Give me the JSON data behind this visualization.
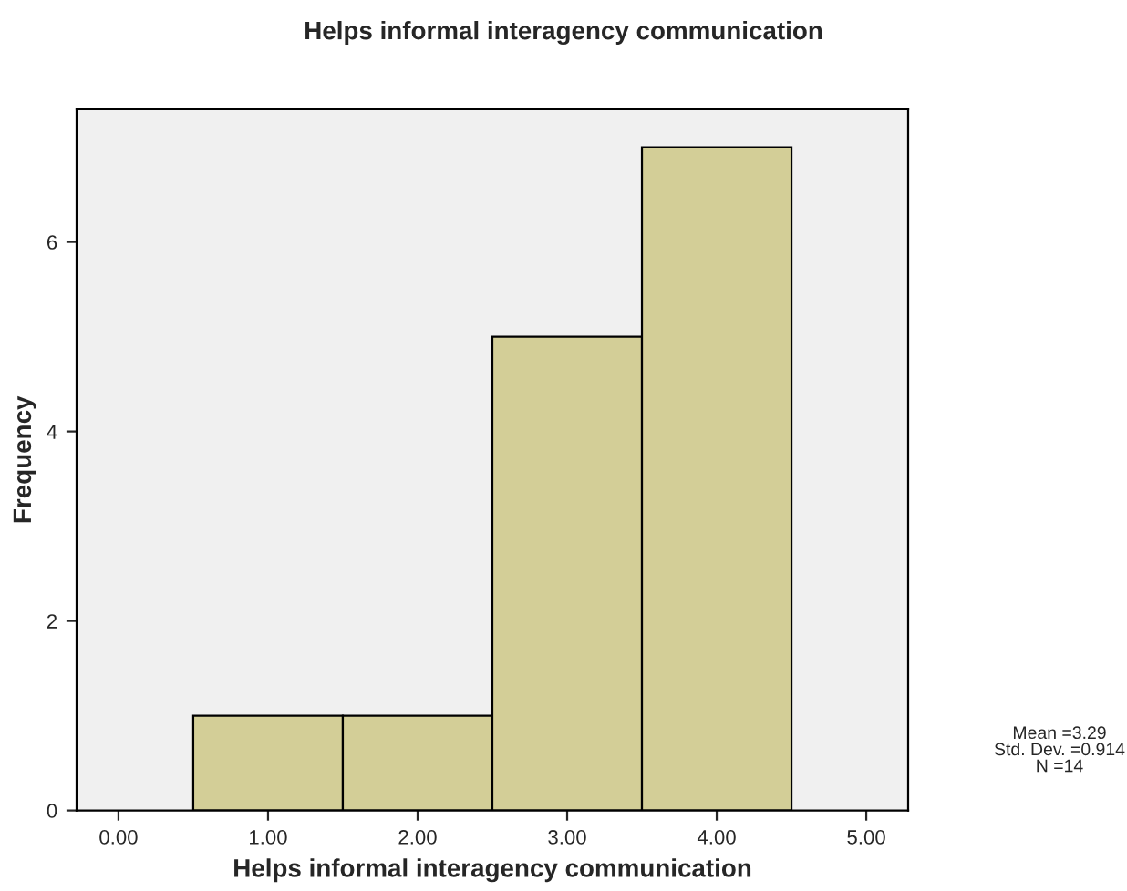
{
  "chart_data": {
    "type": "histogram",
    "title": "Helps informal interagency communication",
    "xlabel": "Helps informal interagency communication",
    "ylabel": "Frequency",
    "bins": [
      0.5,
      1.5,
      2.5,
      3.5,
      4.5
    ],
    "values": [
      1,
      1,
      5,
      7
    ],
    "color": "#d3ce97",
    "xlim": [
      -0.28,
      5.28
    ],
    "xticks": [
      {
        "value": 0,
        "label": "0.00"
      },
      {
        "value": 1,
        "label": "1.00"
      },
      {
        "value": 2,
        "label": "2.00"
      },
      {
        "value": 3,
        "label": "3.00"
      },
      {
        "value": 4,
        "label": "4.00"
      },
      {
        "value": 5,
        "label": "5.00"
      }
    ],
    "ylim": [
      0,
      7.4
    ],
    "yticks": [
      0,
      2,
      4,
      6
    ],
    "grid": false,
    "legend": false,
    "annotations": [
      "Mean =3.29\nStd. Dev. =0.914\nN =14"
    ]
  }
}
